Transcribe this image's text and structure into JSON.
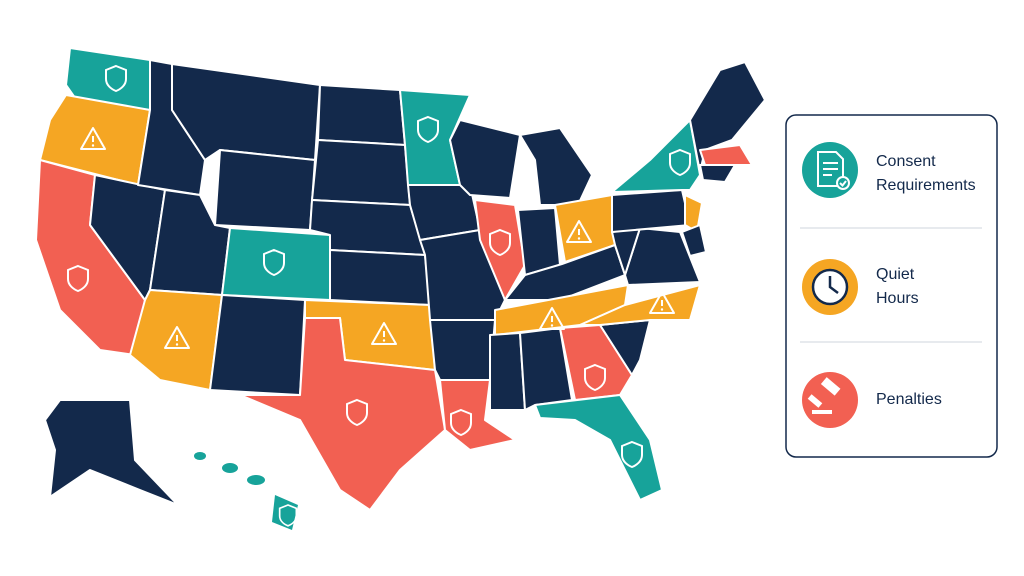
{
  "legend": {
    "items": [
      {
        "label": "Consent Requirements",
        "color": "#17a39a"
      },
      {
        "label": "Quiet Hours",
        "color": "#f5a623"
      },
      {
        "label": "Penalties",
        "color": "#f26052"
      }
    ]
  }
}
